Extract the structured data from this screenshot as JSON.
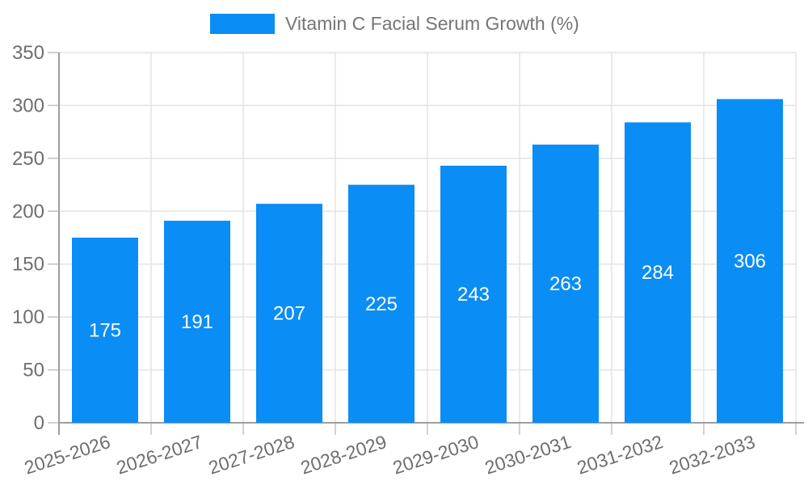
{
  "legend": {
    "label": "Vitamin C Facial Serum Growth (%)"
  },
  "chart_data": {
    "type": "bar",
    "title": "Vitamin C Facial Serum Growth (%)",
    "categories": [
      "2025-2026",
      "2026-2027",
      "2027-2028",
      "2028-2029",
      "2029-2030",
      "2030-2031",
      "2031-2032",
      "2032-2033"
    ],
    "values": [
      175,
      191,
      207,
      225,
      243,
      263,
      284,
      306
    ],
    "yticks": [
      0,
      50,
      100,
      150,
      200,
      250,
      300,
      350
    ],
    "ylim": [
      0,
      350
    ],
    "xlabel": "",
    "ylabel": "",
    "grid": true,
    "legend_position": "top-center",
    "value_label_position": "inside-center"
  },
  "colors": {
    "bar": "#0a8df4",
    "grid": "#e3e3e3",
    "axis": "#9e9e9e",
    "tick": "#c2c2c2",
    "text": "#6e6e6e",
    "legend_text": "#757575",
    "value_label": "#ffffff",
    "background": "#ffffff"
  }
}
